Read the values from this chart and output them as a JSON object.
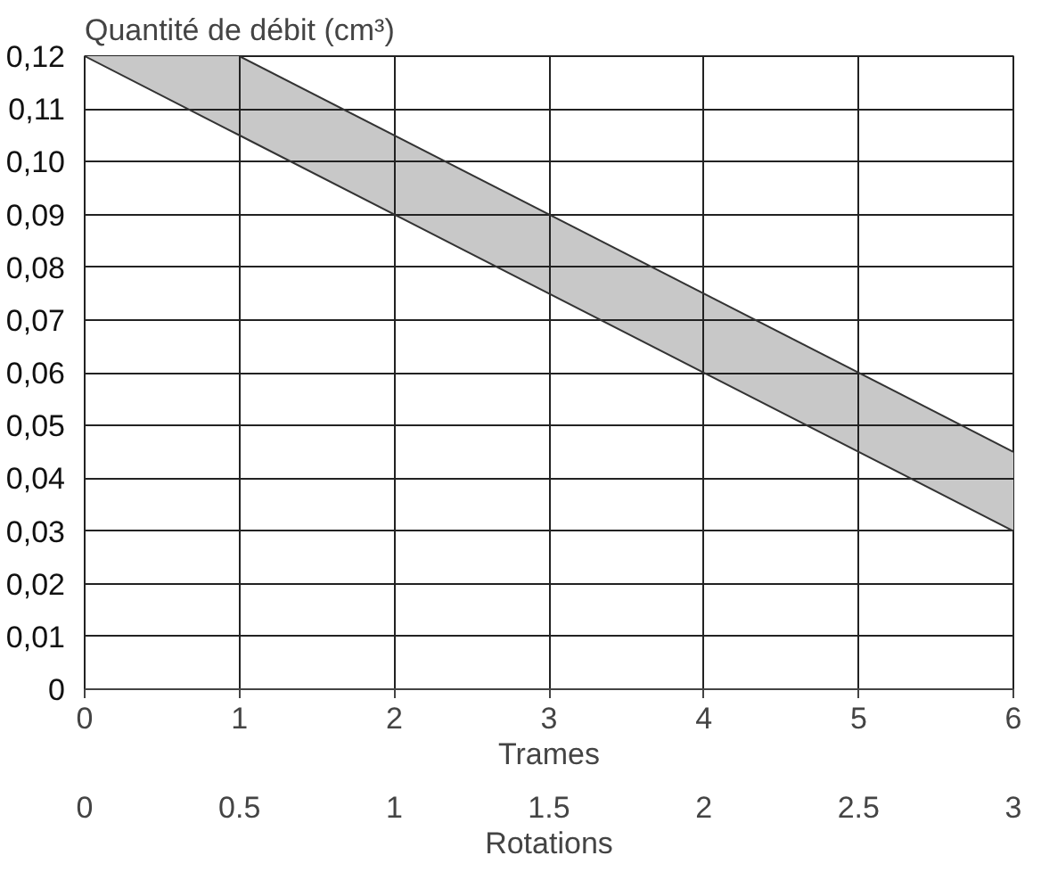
{
  "chart_data": {
    "type": "line",
    "xlabel": "Trames",
    "ylabel": "Quantité de débit (cm³)",
    "x2label": "Rotations",
    "series": [
      {
        "color": "#333333",
        "x": [
          0,
          1,
          6
        ],
        "values": [
          0.12,
          0.105,
          0.03
        ],
        "lower": [
          0.12,
          0.105,
          0.03
        ],
        "upper": [
          0.12,
          0.12,
          0.045
        ]
      },
      {
        "color": "#333333",
        "x": [
          1,
          6
        ],
        "values": [
          0.12,
          0.045
        ]
      }
    ],
    "xlim": [
      0,
      6
    ],
    "xticks": [
      0,
      1,
      2,
      3,
      4,
      5,
      6
    ],
    "x2lim": [
      0,
      3
    ],
    "x2ticks": [
      0,
      0.5,
      1,
      1.5,
      2,
      2.5,
      3
    ],
    "ylim": [
      0,
      0.12
    ],
    "yticks": [
      {
        "value": 0,
        "label": "0"
      },
      {
        "value": 0.01,
        "label": "0,01"
      },
      {
        "value": 0.02,
        "label": "0,02"
      },
      {
        "value": 0.03,
        "label": "0,03"
      },
      {
        "value": 0.04,
        "label": "0,04"
      },
      {
        "value": 0.05,
        "label": "0,05"
      },
      {
        "value": 0.06,
        "label": "0,06"
      },
      {
        "value": 0.07,
        "label": "0,07"
      },
      {
        "value": 0.08,
        "label": "0,08"
      },
      {
        "value": 0.09,
        "label": "0,09"
      },
      {
        "value": 0.1,
        "label": "0,10"
      },
      {
        "value": 0.11,
        "label": "0,11"
      },
      {
        "value": 0.12,
        "label": "0,12"
      }
    ],
    "grid": true
  }
}
